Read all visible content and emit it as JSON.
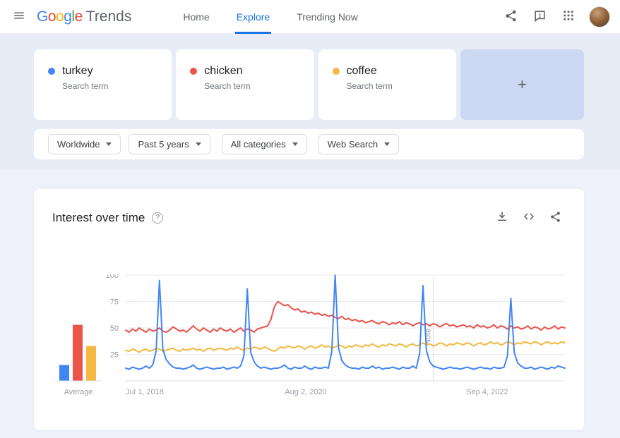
{
  "header": {
    "logo_letters": [
      "G",
      "o",
      "o",
      "g",
      "l",
      "e"
    ],
    "logo_product": "Trends",
    "nav": [
      {
        "label": "Home"
      },
      {
        "label": "Explore"
      },
      {
        "label": "Trending Now"
      }
    ]
  },
  "icons": {
    "menu": "hamburger-menu",
    "share": "share-nodes",
    "feedback": "feedback-bubble",
    "apps": "apps-grid",
    "avatar": "user-avatar",
    "help": "help-circle",
    "download": "download-arrow",
    "embed": "code-brackets"
  },
  "terms": [
    {
      "label": "turkey",
      "type_label": "Search term",
      "color": "#4285f4"
    },
    {
      "label": "chicken",
      "type_label": "Search term",
      "color": "#ea544b"
    },
    {
      "label": "coffee",
      "type_label": "Search term",
      "color": "#f5b942"
    }
  ],
  "add_card": {
    "label": "+"
  },
  "filters": [
    {
      "label": "Worldwide"
    },
    {
      "label": "Past 5 years"
    },
    {
      "label": "All categories"
    },
    {
      "label": "Web Search"
    }
  ],
  "widget": {
    "title": "Interest over time",
    "help_glyph": "?"
  },
  "chart_data": {
    "type": "line",
    "title": "Interest over time",
    "ylim": [
      0,
      100
    ],
    "yticks": [
      25,
      50,
      75,
      100
    ],
    "grid": true,
    "x_ticks": [
      {
        "label": "Jul 1, 2018",
        "pos": 0
      },
      {
        "label": "Aug 2, 2020",
        "pos": 0.41
      },
      {
        "label": "Sep 4, 2022",
        "pos": 0.823
      }
    ],
    "note_marker": {
      "label": "Note",
      "pos": 0.7
    },
    "averages": {
      "label": "Average",
      "values": [
        15,
        53,
        33
      ]
    },
    "series": [
      {
        "name": "turkey",
        "color": "#4285f4",
        "values": [
          12,
          11,
          13,
          12,
          11,
          12,
          14,
          12,
          15,
          28,
          95,
          30,
          20,
          16,
          13,
          12,
          12,
          11,
          12,
          13,
          15,
          12,
          11,
          12,
          13,
          12,
          11,
          12,
          12,
          13,
          11,
          12,
          13,
          12,
          14,
          24,
          87,
          27,
          18,
          14,
          12,
          13,
          12,
          11,
          12,
          12,
          13,
          15,
          12,
          11,
          13,
          12,
          12,
          14,
          12,
          11,
          13,
          12,
          12,
          13,
          12,
          28,
          100,
          31,
          19,
          15,
          13,
          12,
          12,
          11,
          13,
          12,
          12,
          14,
          12,
          13,
          11,
          12,
          12,
          13,
          12,
          11,
          13,
          12,
          12,
          14,
          12,
          26,
          90,
          29,
          18,
          14,
          13,
          12,
          11,
          12,
          13,
          12,
          12,
          11,
          12,
          13,
          12,
          11,
          12,
          13,
          12,
          12,
          11,
          13,
          12,
          12,
          13,
          24,
          78,
          27,
          17,
          14,
          12,
          12,
          13,
          11,
          12,
          13,
          12,
          11,
          13,
          12,
          14,
          13,
          12
        ]
      },
      {
        "name": "chicken",
        "color": "#ea544b",
        "values": [
          48,
          46,
          49,
          47,
          50,
          48,
          46,
          49,
          47,
          48,
          50,
          47,
          46,
          48,
          51,
          49,
          47,
          48,
          46,
          49,
          52,
          49,
          47,
          50,
          48,
          46,
          49,
          47,
          50,
          48,
          47,
          49,
          46,
          48,
          50,
          47,
          49,
          48,
          46,
          49,
          50,
          51,
          52,
          58,
          70,
          75,
          73,
          71,
          72,
          69,
          67,
          68,
          65,
          66,
          64,
          65,
          63,
          64,
          62,
          63,
          61,
          62,
          60,
          59,
          61,
          58,
          59,
          57,
          58,
          56,
          57,
          55,
          56,
          57,
          55,
          54,
          56,
          55,
          53,
          55,
          54,
          56,
          53,
          55,
          54,
          52,
          54,
          55,
          53,
          54,
          52,
          54,
          53,
          51,
          53,
          54,
          52,
          53,
          51,
          52,
          53,
          51,
          52,
          50,
          53,
          51,
          52,
          50,
          51,
          53,
          50,
          52,
          51,
          49,
          52,
          50,
          51,
          49,
          50,
          52,
          49,
          51,
          50,
          48,
          51,
          49,
          50,
          52,
          49,
          51,
          50
        ]
      },
      {
        "name": "coffee",
        "color": "#f5b942",
        "values": [
          29,
          28,
          30,
          29,
          27,
          29,
          30,
          28,
          29,
          31,
          30,
          28,
          29,
          30,
          31,
          29,
          28,
          30,
          29,
          30,
          31,
          29,
          30,
          28,
          30,
          31,
          29,
          30,
          31,
          30,
          29,
          31,
          30,
          32,
          30,
          29,
          31,
          30,
          32,
          31,
          30,
          32,
          31,
          29,
          28,
          30,
          32,
          31,
          33,
          32,
          31,
          33,
          32,
          30,
          32,
          33,
          31,
          32,
          34,
          32,
          33,
          31,
          32,
          34,
          33,
          31,
          33,
          32,
          34,
          33,
          32,
          34,
          33,
          35,
          33,
          32,
          34,
          33,
          35,
          34,
          33,
          35,
          34,
          32,
          34,
          35,
          33,
          34,
          36,
          34,
          35,
          33,
          34,
          36,
          35,
          33,
          35,
          34,
          36,
          35,
          34,
          36,
          35,
          33,
          35,
          36,
          34,
          35,
          37,
          35,
          36,
          34,
          35,
          37,
          36,
          34,
          36,
          35,
          37,
          36,
          35,
          37,
          36,
          34,
          36,
          37,
          35,
          36,
          35,
          37,
          36
        ]
      }
    ]
  }
}
